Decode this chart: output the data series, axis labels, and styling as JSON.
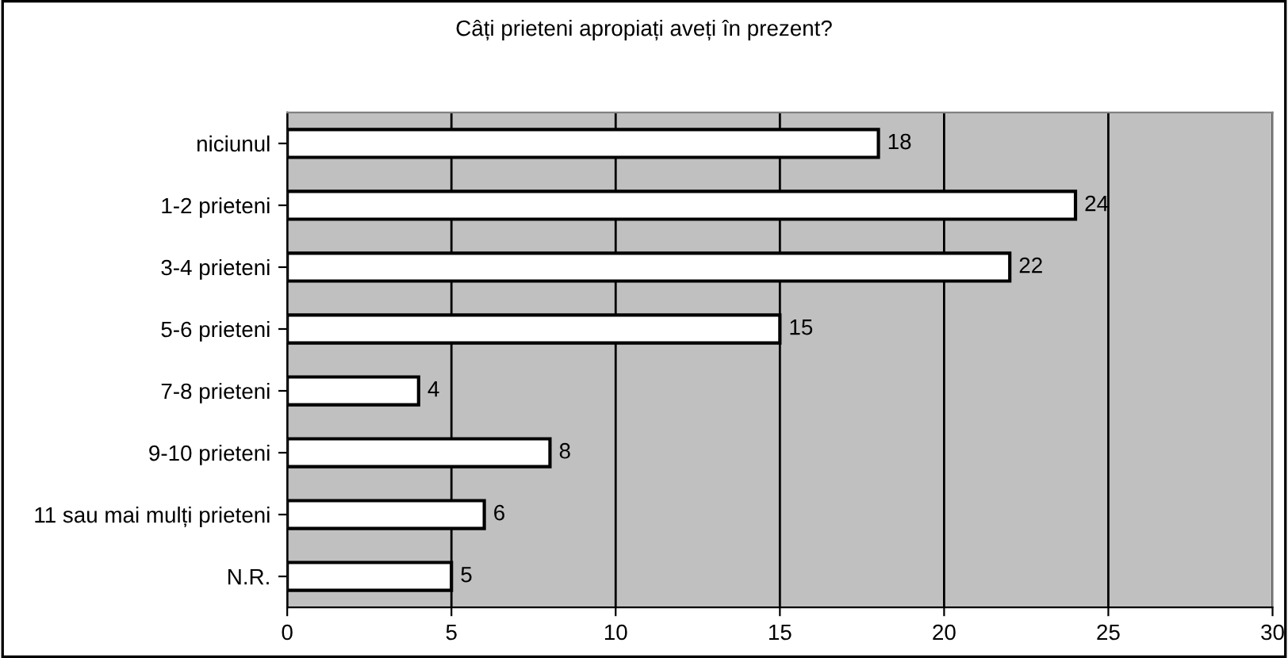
{
  "chart_data": {
    "type": "bar",
    "orientation": "horizontal",
    "title": "Câți prieteni apropiați aveți în prezent?",
    "categories": [
      "niciunul",
      "1-2 prieteni",
      "3-4 prieteni",
      "5-6 prieteni",
      "7-8 prieteni",
      "9-10 prieteni",
      "11 sau mai mulți prieteni",
      "N.R."
    ],
    "values": [
      18,
      24,
      22,
      15,
      4,
      8,
      6,
      5
    ],
    "color": "#ffffff",
    "xlim": [
      0,
      30
    ],
    "xticks": [
      0,
      5,
      10,
      15,
      20,
      25,
      30
    ],
    "grid": "x",
    "data_labels": true,
    "legend": false
  }
}
